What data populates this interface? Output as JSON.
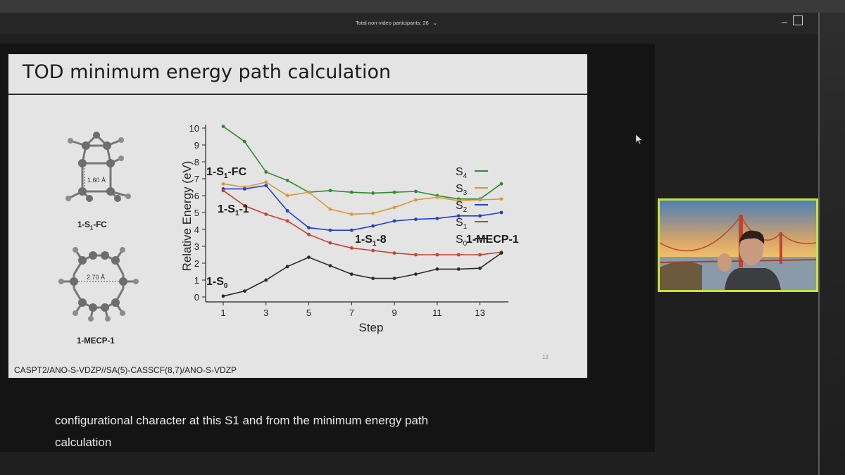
{
  "meeting": {
    "participants_label": "Total non-video participants: 26",
    "participants_chevron": "⌄"
  },
  "slide": {
    "title": "TOD minimum energy path calculation",
    "molecules": [
      {
        "label_main": "1-S",
        "label_sub": "1",
        "label_tail": "-FC",
        "bond_label": "1.60 Å"
      },
      {
        "label_main": "1-MECP-1",
        "label_sub": "",
        "label_tail": "",
        "bond_label": "2.70 Å"
      }
    ],
    "footnote": "CASPT2/ANO-S-VDZP//SA(5)-CASSCF(8,7)/ANO-S-VDZP",
    "page_number": "12"
  },
  "caption": {
    "line1": "configurational character at this S1 and from the minimum energy path",
    "line2": "calculation"
  },
  "chart_data": {
    "type": "line",
    "xlabel": "Step",
    "ylabel": "Relative Energy (eV)",
    "xlim": [
      1,
      14
    ],
    "ylim": [
      0,
      10
    ],
    "x_ticks": [
      1,
      3,
      5,
      7,
      9,
      11,
      13
    ],
    "y_ticks": [
      0,
      1,
      2,
      3,
      4,
      5,
      6,
      7,
      8,
      9,
      10
    ],
    "x": [
      1,
      2,
      3,
      4,
      5,
      6,
      7,
      8,
      9,
      10,
      11,
      12,
      13,
      14
    ],
    "legend_position": "top-right",
    "series": [
      {
        "name": "S4",
        "color": "#2e8b2e",
        "values": [
          10.1,
          9.2,
          7.4,
          6.9,
          6.2,
          6.3,
          6.2,
          6.15,
          6.2,
          6.25,
          6.0,
          5.8,
          5.8,
          6.7
        ]
      },
      {
        "name": "S3",
        "color": "#d89a3c",
        "values": [
          6.7,
          6.5,
          6.8,
          6.0,
          6.2,
          5.2,
          4.9,
          4.95,
          5.3,
          5.75,
          5.9,
          5.7,
          5.75,
          5.8
        ]
      },
      {
        "name": "S2",
        "color": "#1f3fd1",
        "values": [
          6.4,
          6.4,
          6.6,
          5.1,
          4.1,
          3.95,
          3.95,
          4.2,
          4.5,
          4.6,
          4.65,
          4.8,
          4.8,
          5.0
        ]
      },
      {
        "name": "S1",
        "color": "#c8402f",
        "values": [
          6.3,
          5.4,
          4.9,
          4.5,
          3.7,
          3.2,
          2.9,
          2.75,
          2.6,
          2.5,
          2.5,
          2.5,
          2.5,
          2.65
        ]
      },
      {
        "name": "S0",
        "color": "#2b2b2b",
        "values": [
          0.05,
          0.35,
          1.0,
          1.8,
          2.35,
          1.85,
          1.35,
          1.1,
          1.1,
          1.35,
          1.65,
          1.65,
          1.7,
          2.6
        ]
      }
    ],
    "legend_labels": [
      {
        "main": "S",
        "sub": "4"
      },
      {
        "main": "S",
        "sub": "3"
      },
      {
        "main": "S",
        "sub": "2"
      },
      {
        "main": "S",
        "sub": "1"
      },
      {
        "main": "S",
        "sub": "0"
      }
    ],
    "annotations": [
      {
        "main": "1-S",
        "sub": "1",
        "tail": "-FC",
        "x": 1,
        "y": 6.9
      },
      {
        "main": "1-S",
        "sub": "1",
        "tail": "-1",
        "x": 1,
        "y": 4.6
      },
      {
        "main": "1-S",
        "sub": "1",
        "tail": "-8",
        "x": 7,
        "y": 3.3
      },
      {
        "main": "1-MECP-1",
        "sub": "",
        "tail": "",
        "x": 13,
        "y": 3.3
      },
      {
        "main": "1-S",
        "sub": "0",
        "tail": "",
        "x": 1,
        "y": 0.5
      }
    ]
  },
  "colors": {
    "slide_bg": "#e4e4e4",
    "video_border": "#c7e43a"
  }
}
